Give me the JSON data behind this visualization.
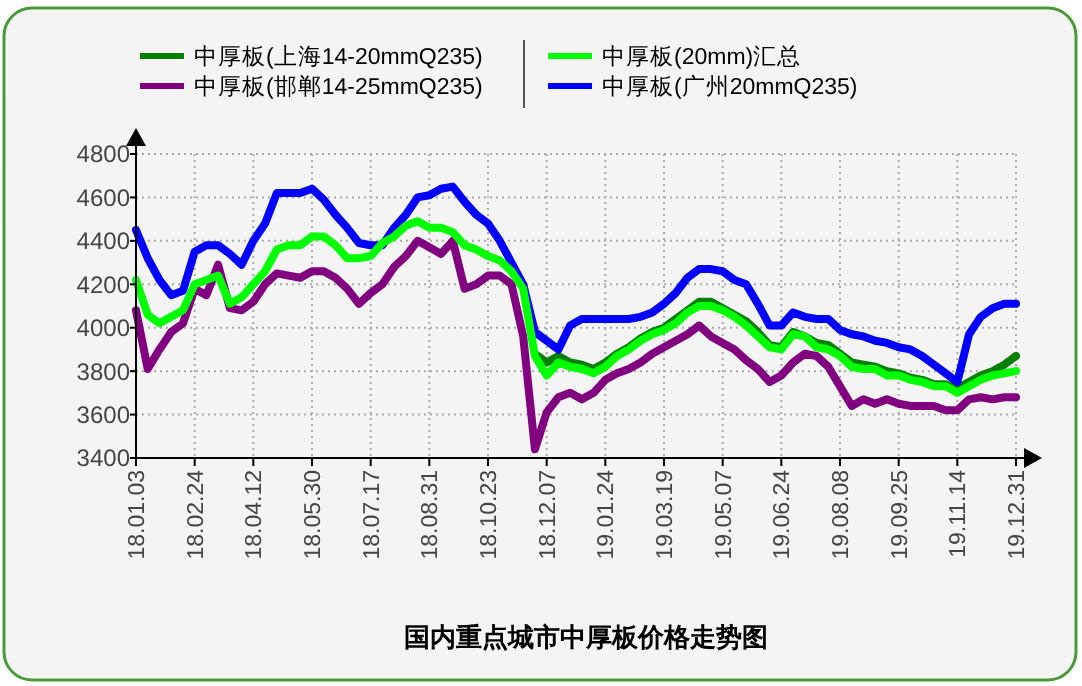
{
  "chart_data": {
    "type": "line",
    "title": "国内重点城市中厚板价格走势图",
    "categories": [
      "18.01.03",
      null,
      null,
      null,
      null,
      "18.02.24",
      null,
      null,
      null,
      null,
      "18.04.12",
      null,
      null,
      null,
      null,
      "18.05.30",
      null,
      null,
      null,
      null,
      "18.07.17",
      null,
      null,
      null,
      null,
      "18.08.31",
      null,
      null,
      null,
      null,
      "18.10.23",
      null,
      null,
      null,
      null,
      "18.12.07",
      null,
      null,
      null,
      null,
      "19.01.24",
      null,
      null,
      null,
      null,
      "19.03.19",
      null,
      null,
      null,
      null,
      "19.05.07",
      null,
      null,
      null,
      null,
      "19.06.24",
      null,
      null,
      null,
      null,
      "19.08.08",
      null,
      null,
      null,
      null,
      "19.09.25",
      null,
      null,
      null,
      null,
      "19.11.14",
      null,
      null,
      null,
      null,
      "19.12.31"
    ],
    "series": [
      {
        "name": "中厚板(上海14-20mmQ235)",
        "color": "#008000",
        "values": [
          null,
          null,
          null,
          null,
          null,
          null,
          null,
          null,
          null,
          null,
          null,
          null,
          null,
          null,
          null,
          null,
          null,
          null,
          null,
          null,
          null,
          null,
          null,
          null,
          null,
          null,
          null,
          null,
          null,
          null,
          null,
          null,
          null,
          null,
          3880,
          3840,
          3870,
          3840,
          3830,
          3810,
          3840,
          3880,
          3910,
          3950,
          3980,
          4000,
          4040,
          4080,
          4120,
          4120,
          4090,
          4060,
          4030,
          3980,
          3920,
          3910,
          3980,
          3960,
          3930,
          3920,
          3880,
          3840,
          3830,
          3820,
          3800,
          3790,
          3770,
          3760,
          3740,
          3740,
          3720,
          3750,
          3780,
          3800,
          3830,
          3870
        ]
      },
      {
        "name": "中厚板(邯郸14-25mmQ235)",
        "color": "#800080",
        "values": [
          4080,
          3810,
          3900,
          3980,
          4020,
          4180,
          4150,
          4290,
          4090,
          4080,
          4120,
          4200,
          4250,
          4240,
          4230,
          4260,
          4260,
          4230,
          4180,
          4110,
          4160,
          4200,
          4280,
          4330,
          4400,
          4370,
          4340,
          4400,
          4180,
          4200,
          4240,
          4240,
          4200,
          3960,
          3440,
          3610,
          3680,
          3700,
          3670,
          3700,
          3760,
          3790,
          3810,
          3840,
          3880,
          3910,
          3940,
          3970,
          4010,
          3960,
          3930,
          3900,
          3850,
          3810,
          3750,
          3780,
          3840,
          3880,
          3870,
          3820,
          3730,
          3640,
          3670,
          3650,
          3670,
          3650,
          3640,
          3640,
          3640,
          3620,
          3620,
          3670,
          3680,
          3670,
          3680,
          3680
        ]
      },
      {
        "name": "中厚板(广州20mmQ235)",
        "color": "#0000ff",
        "values": [
          4450,
          4320,
          4220,
          4150,
          4170,
          4350,
          4380,
          4380,
          4340,
          4290,
          4400,
          4480,
          4620,
          4620,
          4620,
          4640,
          4590,
          4520,
          4460,
          4390,
          4380,
          4380,
          4460,
          4520,
          4600,
          4610,
          4640,
          4650,
          4580,
          4520,
          4480,
          4400,
          4300,
          4200,
          3980,
          3940,
          3900,
          4010,
          4040,
          4040,
          4040,
          4040,
          4040,
          4050,
          4070,
          4110,
          4160,
          4230,
          4270,
          4270,
          4260,
          4220,
          4200,
          4110,
          4010,
          4010,
          4070,
          4050,
          4040,
          4040,
          3990,
          3970,
          3960,
          3940,
          3930,
          3910,
          3900,
          3870,
          3830,
          3790,
          3750,
          3970,
          4050,
          4090,
          4110,
          4110
        ]
      },
      {
        "name": "中厚板(20mm)汇总",
        "color": "#00ff00",
        "values": [
          4220,
          4060,
          4020,
          4050,
          4080,
          4200,
          4220,
          4240,
          4110,
          4140,
          4200,
          4260,
          4360,
          4380,
          4380,
          4420,
          4420,
          4380,
          4320,
          4320,
          4330,
          4390,
          4420,
          4470,
          4490,
          4460,
          4460,
          4440,
          4380,
          4360,
          4330,
          4310,
          4260,
          4180,
          3870,
          3780,
          3840,
          3820,
          3810,
          3790,
          3820,
          3870,
          3900,
          3940,
          3970,
          3990,
          4020,
          4070,
          4100,
          4100,
          4080,
          4050,
          4010,
          3960,
          3910,
          3900,
          3970,
          3960,
          3910,
          3900,
          3870,
          3820,
          3810,
          3810,
          3780,
          3780,
          3760,
          3750,
          3730,
          3730,
          3700,
          3730,
          3760,
          3780,
          3790,
          3800
        ]
      }
    ],
    "ylim": [
      3400,
      4800
    ],
    "yticks": [
      3400,
      3600,
      3800,
      4000,
      4200,
      4400,
      4600,
      4800
    ],
    "grid": true,
    "legend": "top",
    "marker": "none",
    "line_style": "solid"
  }
}
